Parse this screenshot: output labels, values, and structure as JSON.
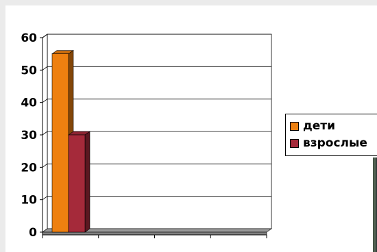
{
  "chart_data": {
    "type": "bar",
    "categories": [
      "",
      "",
      "",
      ""
    ],
    "series": [
      {
        "name": "дети",
        "color": "#ee8010",
        "values": [
          55,
          0,
          0,
          0
        ]
      },
      {
        "name": "взрослые",
        "color": "#a52a3a",
        "values": [
          30,
          0,
          0,
          0
        ]
      }
    ],
    "yticks": [
      "0",
      "10",
      "20",
      "30",
      "40",
      "50",
      "60"
    ],
    "ylim": [
      0,
      60
    ],
    "title": "",
    "xlabel": "",
    "ylabel": "",
    "grid": true,
    "legend_position": "right",
    "style": "3d-clustered-column"
  }
}
